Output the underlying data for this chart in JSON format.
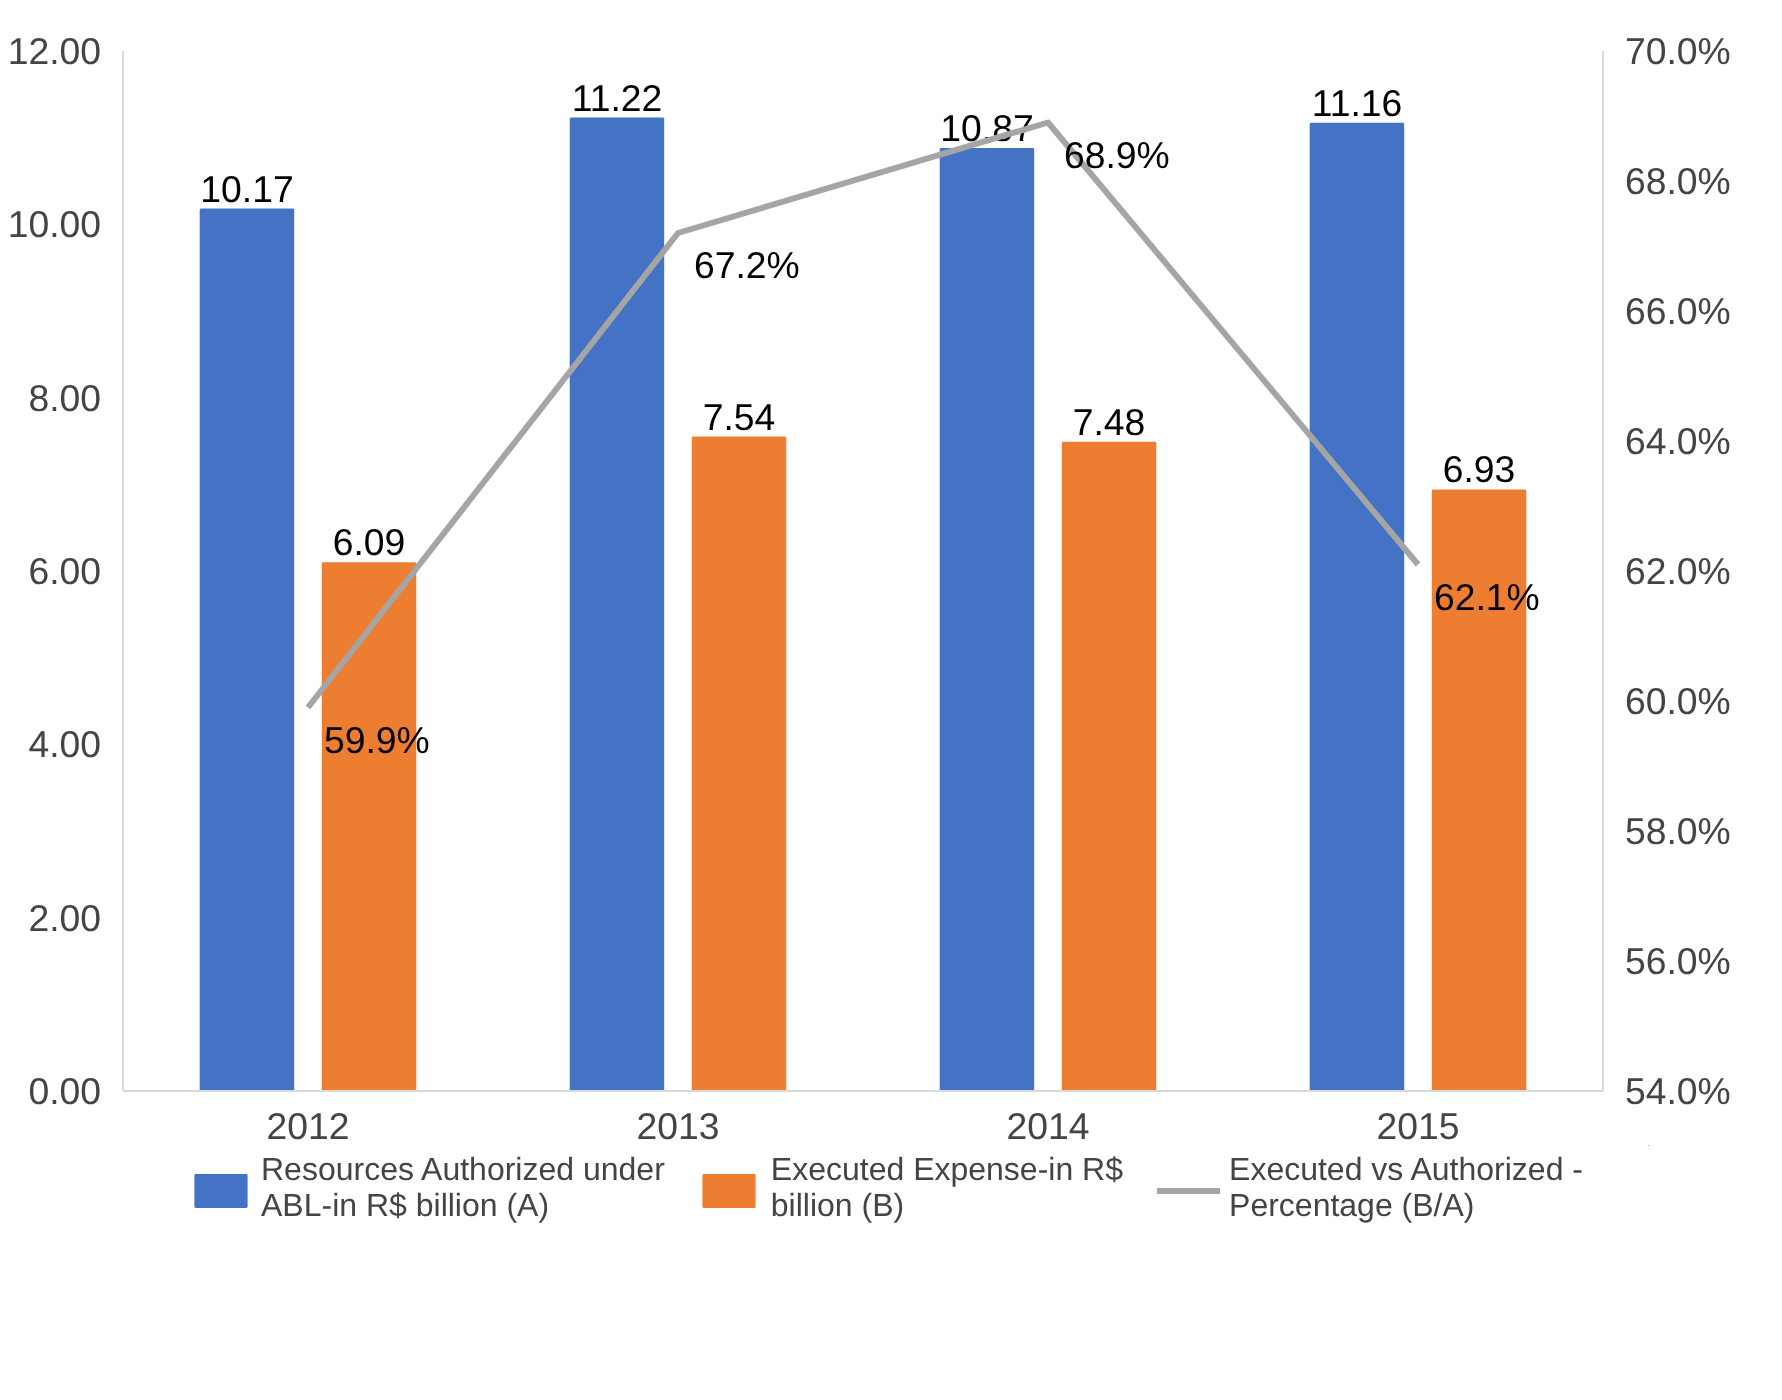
{
  "chart_data": {
    "type": "bar",
    "categories": [
      "2012",
      "2013",
      "2014",
      "2015"
    ],
    "series": [
      {
        "name": "Resources Authorized under ABL-in R$ billion (A)",
        "color": "#4472c4",
        "values": [
          10.17,
          11.22,
          10.87,
          11.16
        ],
        "value_labels": [
          "10.17",
          "11.22",
          "10.87",
          "11.16"
        ]
      },
      {
        "name": "Executed Expense-in R$ billion (B)",
        "color": "#ed7d31",
        "values": [
          6.09,
          7.54,
          7.48,
          6.93
        ],
        "value_labels": [
          "6.09",
          "7.54",
          "7.48",
          "6.93"
        ]
      },
      {
        "name": "Executed vs Authorized - Percentage (B/A)",
        "color": "#a5a5a5",
        "type": "line",
        "axis": "y2",
        "values": [
          59.9,
          67.2,
          68.9,
          62.1
        ],
        "value_labels": [
          "59.9%",
          "67.2%",
          "68.9%",
          "62.1%"
        ]
      }
    ],
    "ylim": [
      0,
      12
    ],
    "yticks": [
      {
        "value": 0,
        "label": "0.00"
      },
      {
        "value": 2,
        "label": "2.00"
      },
      {
        "value": 4,
        "label": "4.00"
      },
      {
        "value": 6,
        "label": "6.00"
      },
      {
        "value": 8,
        "label": "8.00"
      },
      {
        "value": 10,
        "label": "10.00"
      },
      {
        "value": 12,
        "label": "12.00"
      }
    ],
    "y2lim": [
      54,
      70
    ],
    "y2ticks": [
      {
        "value": 54,
        "label": "54.0%"
      },
      {
        "value": 56,
        "label": "56.0%"
      },
      {
        "value": 58,
        "label": "58.0%"
      },
      {
        "value": 60,
        "label": "60.0%"
      },
      {
        "value": 62,
        "label": "62.0%"
      },
      {
        "value": 64,
        "label": "64.0%"
      },
      {
        "value": 66,
        "label": "66.0%"
      },
      {
        "value": 68,
        "label": "68.0%"
      },
      {
        "value": 70,
        "label": "70.0%"
      }
    ],
    "grid": false,
    "legend": "bottom",
    "marker": "none",
    "line_style": "solid"
  }
}
